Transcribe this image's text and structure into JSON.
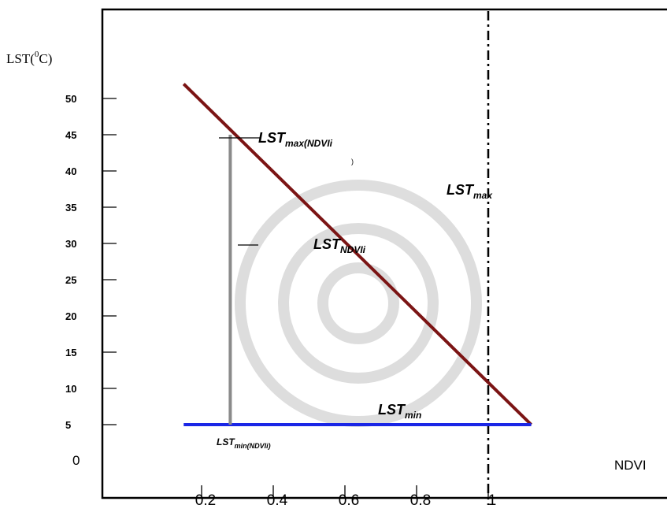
{
  "chart_data": {
    "type": "line",
    "ylabel_base": "LST(",
    "ylabel_sup": "0",
    "ylabel_end": "C)",
    "xlabel": "NDVI",
    "y_ticks": [
      "50",
      "45",
      "40",
      "35",
      "30",
      "25",
      "20",
      "15",
      "10",
      "5",
      "0"
    ],
    "x_ticks": [
      "0.2",
      "0.4",
      "0.6",
      "0.8",
      "1"
    ],
    "ylim": [
      0,
      57
    ],
    "xlim": [
      0.0,
      1.25
    ],
    "series": [
      {
        "x": [
          0.15,
          1.12
        ],
        "y": [
          52,
          5
        ],
        "color": "#7b1414"
      },
      {
        "x": [
          0.15,
          1.12
        ],
        "y": [
          5,
          5
        ],
        "color": "#1a26e6"
      },
      {
        "x": [
          0.28,
          0.28
        ],
        "y": [
          5,
          45
        ],
        "color": "#8a8a8a"
      }
    ],
    "reference_line": {
      "x": 1.0,
      "style": "dash-dot",
      "color": "#000000"
    },
    "annotations": [
      {
        "base": "LST",
        "sub": "max(NDVIi",
        "extra": ")"
      },
      {
        "base": "LST",
        "sub": "max"
      },
      {
        "base": "LST",
        "sub": "NDVIi"
      },
      {
        "base": "LST",
        "sub": "min"
      },
      {
        "base": "LST",
        "sub": "min(NDVIi)"
      }
    ]
  }
}
